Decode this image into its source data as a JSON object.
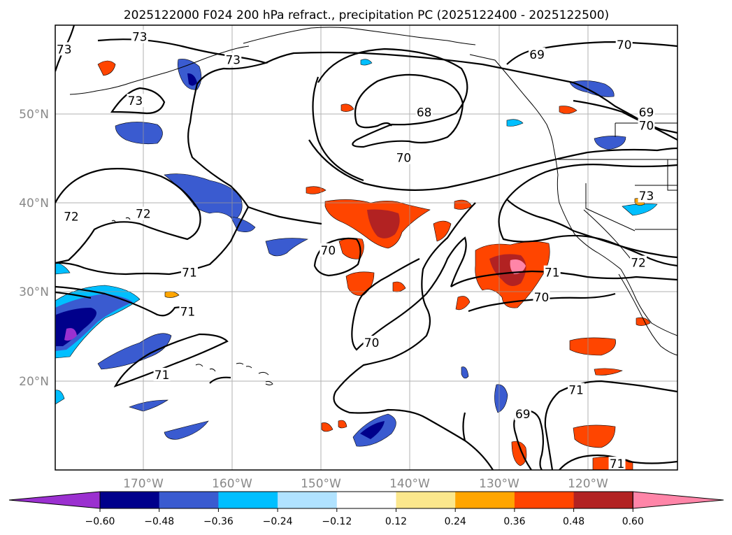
{
  "title": "2025122000 F024 200 hPa refract., precipitation PC (2025122400 - 2025122500)",
  "map": {
    "lat_labels": [
      "50°N",
      "40°N",
      "30°N",
      "20°N"
    ],
    "lon_labels": [
      "170°W",
      "160°W",
      "150°W",
      "140°W",
      "130°W",
      "120°W"
    ],
    "lat_values": [
      50,
      40,
      30,
      20
    ],
    "lon_values": [
      -170,
      -160,
      -150,
      -140,
      -130,
      -120
    ],
    "extent": {
      "lon_min": -180,
      "lon_max": -110,
      "lat_min": 10,
      "lat_max": 60
    },
    "contour_labels": [
      {
        "text": "73",
        "lon": -179,
        "lat": 57.3
      },
      {
        "text": "73",
        "lon": -170.5,
        "lat": 58.7
      },
      {
        "text": "73",
        "lon": -160,
        "lat": 56.1
      },
      {
        "text": "73",
        "lon": -171,
        "lat": 51.5
      },
      {
        "text": "69",
        "lon": -125.8,
        "lat": 56.7
      },
      {
        "text": "68",
        "lon": -138.5,
        "lat": 50.2
      },
      {
        "text": "70",
        "lon": -140.8,
        "lat": 45.1
      },
      {
        "text": "70",
        "lon": -116,
        "lat": 57.8
      },
      {
        "text": "69",
        "lon": -113.5,
        "lat": 50.2
      },
      {
        "text": "70",
        "lon": -113.5,
        "lat": 48.7
      },
      {
        "text": "72",
        "lon": -178.2,
        "lat": 38.5
      },
      {
        "text": "72",
        "lon": -170.1,
        "lat": 38.8
      },
      {
        "text": "73",
        "lon": -113.5,
        "lat": 40.8
      },
      {
        "text": "72",
        "lon": -114.4,
        "lat": 33.3
      },
      {
        "text": "70",
        "lon": -149.3,
        "lat": 34.7
      },
      {
        "text": "71",
        "lon": -164.9,
        "lat": 32.2
      },
      {
        "text": "71",
        "lon": -124.1,
        "lat": 32.2
      },
      {
        "text": "70",
        "lon": -125.3,
        "lat": 29.4
      },
      {
        "text": "71",
        "lon": -165.1,
        "lat": 27.8
      },
      {
        "text": "70",
        "lon": -144.4,
        "lat": 24.3
      },
      {
        "text": "71",
        "lon": -168.0,
        "lat": 20.7
      },
      {
        "text": "71",
        "lon": -121.4,
        "lat": 19.0
      },
      {
        "text": "69",
        "lon": -127.4,
        "lat": 16.3
      },
      {
        "text": "71",
        "lon": -116.8,
        "lat": 10.7
      }
    ]
  },
  "colorbar": {
    "ticks": [
      "−0.60",
      "−0.48",
      "−0.36",
      "−0.24",
      "−0.12",
      "0.12",
      "0.24",
      "0.36",
      "0.48",
      "0.60"
    ],
    "colors": [
      "#9b30d0",
      "#00008b",
      "#3a5bd0",
      "#00bfff",
      "#b0e2ff",
      "#ffffff",
      "#fbe78c",
      "#ffa500",
      "#ff4500",
      "#b22222",
      "#ff85a8"
    ]
  }
}
